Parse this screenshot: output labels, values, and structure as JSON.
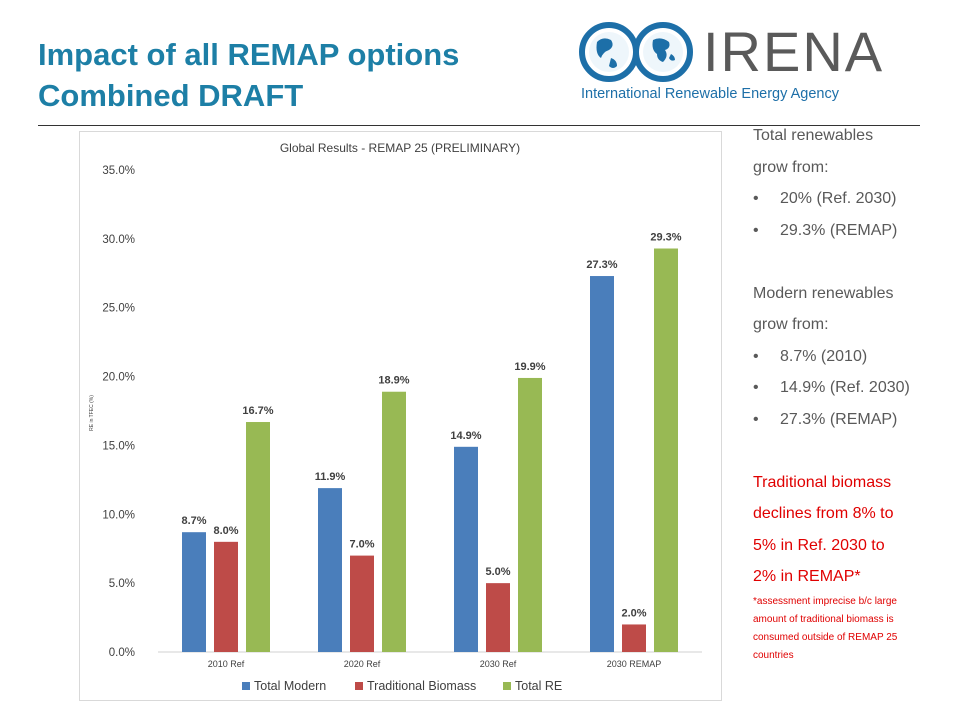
{
  "slide": {
    "title_line1": "Impact of all REMAP options",
    "title_line2": "Combined DRAFT"
  },
  "logo": {
    "name": "IRENA",
    "subtitle": "International Renewable Energy Agency"
  },
  "side": {
    "renew_line1": "Total renewables",
    "renew_line2": "grow from:",
    "renew_items": [
      "20% (Ref. 2030)",
      "29.3% (REMAP)"
    ],
    "modern_line1": "Modern renewables",
    "modern_line2": "grow from:",
    "modern_items": [
      "8.7% (2010)",
      "14.9% (Ref. 2030)",
      "27.3% (REMAP)"
    ],
    "bio_lines": [
      "Traditional biomass",
      "declines from 8% to",
      "5% in Ref. 2030 to",
      "2% in REMAP*"
    ],
    "note_lines": [
      "*assessment imprecise b/c large",
      "amount of traditional biomass is",
      "consumed outside of REMAP 25",
      "countries"
    ],
    "bullet": "•"
  },
  "colors": {
    "title": "#1d7fa6",
    "total_modern": "#4a7ebb",
    "traditional_biomass": "#be4b48",
    "total_re": "#98b954",
    "highlight_red": "#e00000"
  },
  "chart_data": {
    "type": "bar",
    "title": "Global Results - REMAP 25 (PRELIMINARY)",
    "ylabel": "RE in TFEC (%)",
    "xlabel": "",
    "categories": [
      "2010 Ref",
      "2020 Ref",
      "2030 Ref",
      "2030 REMAP"
    ],
    "ylim": [
      0,
      35
    ],
    "yticks": [
      "0.0%",
      "5.0%",
      "10.0%",
      "15.0%",
      "20.0%",
      "25.0%",
      "30.0%",
      "35.0%"
    ],
    "series": [
      {
        "name": "Total Modern",
        "color": "#4a7ebb",
        "values": [
          8.7,
          11.9,
          14.9,
          27.3
        ],
        "labels": [
          "8.7%",
          "11.9%",
          "14.9%",
          "27.3%"
        ]
      },
      {
        "name": "Traditional Biomass",
        "color": "#be4b48",
        "values": [
          8.0,
          7.0,
          5.0,
          2.0
        ],
        "labels": [
          "8.0%",
          "7.0%",
          "5.0%",
          "2.0%"
        ]
      },
      {
        "name": "Total RE",
        "color": "#98b954",
        "values": [
          16.7,
          18.9,
          19.9,
          29.3
        ],
        "labels": [
          "16.7%",
          "18.9%",
          "19.9%",
          "29.3%"
        ]
      }
    ],
    "grid": false,
    "legend": "bottom"
  }
}
